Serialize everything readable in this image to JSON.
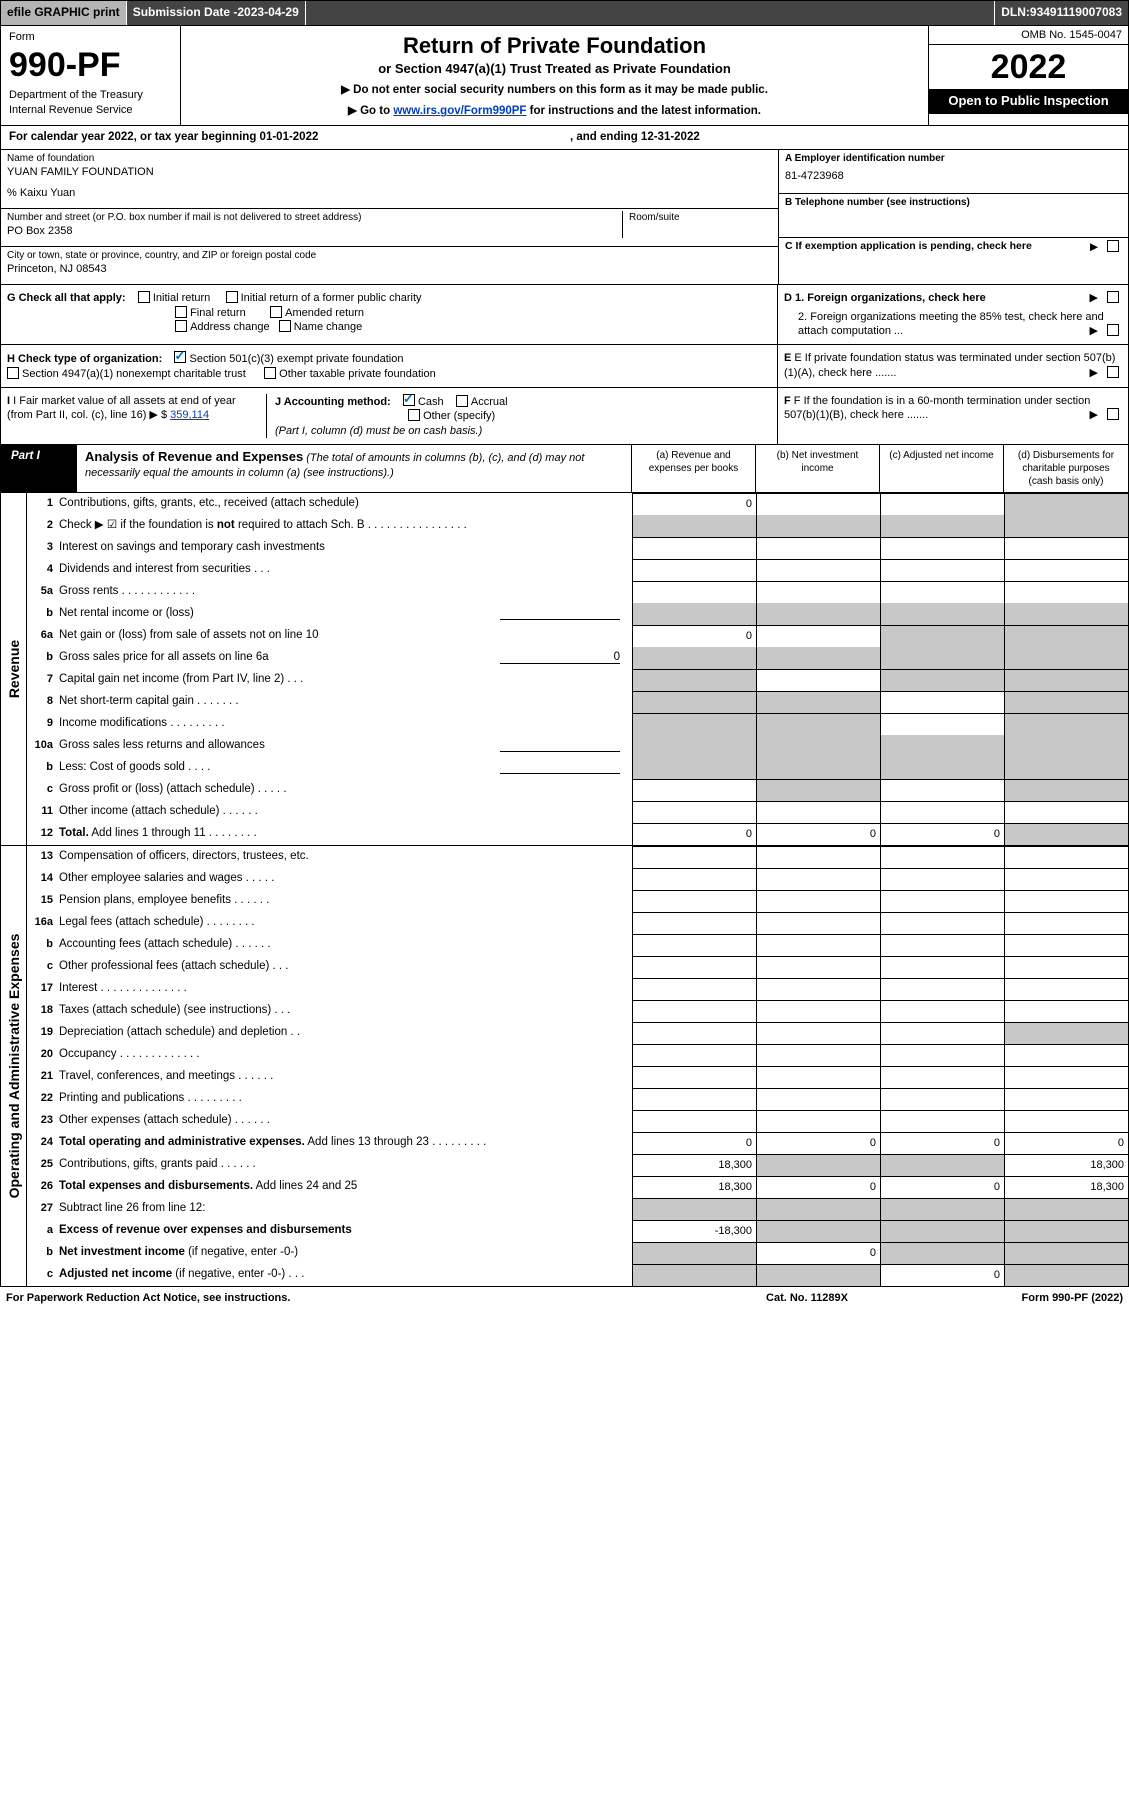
{
  "topbar": {
    "efile": "efile GRAPHIC print",
    "subdate_label": "Submission Date - ",
    "subdate": "2023-04-29",
    "dln_label": "DLN: ",
    "dln": "93491119007083"
  },
  "header": {
    "form_word": "Form",
    "form_no": "990-PF",
    "dept1": "Department of the Treasury",
    "dept2": "Internal Revenue Service",
    "title": "Return of Private Foundation",
    "subtitle": "or Section 4947(a)(1) Trust Treated as Private Foundation",
    "instr1": "▶ Do not enter social security numbers on this form as it may be made public.",
    "instr2_pre": "▶ Go to ",
    "instr2_link": "www.irs.gov/Form990PF",
    "instr2_post": " for instructions and the latest information.",
    "omb": "OMB No. 1545-0047",
    "year": "2022",
    "open": "Open to Public Inspection"
  },
  "cal": {
    "pre": "For calendar year 2022, or tax year beginning ",
    "begin": "01-01-2022",
    "mid": ", and ending ",
    "end": "12-31-2022"
  },
  "id": {
    "name_label": "Name of foundation",
    "name": "YUAN FAMILY FOUNDATION",
    "care": "% Kaixu Yuan",
    "addr_label": "Number and street (or P.O. box number if mail is not delivered to street address)",
    "addr": "PO Box 2358",
    "room_label": "Room/suite",
    "city_label": "City or town, state or province, country, and ZIP or foreign postal code",
    "city": "Princeton, NJ  08543",
    "ein_label": "A Employer identification number",
    "ein": "81-4723968",
    "tel_label": "B Telephone number (see instructions)",
    "c_label": "C If exemption application is pending, check here"
  },
  "checks": {
    "g_label": "G Check all that apply:",
    "g1": "Initial return",
    "g2": "Initial return of a former public charity",
    "g3": "Final return",
    "g4": "Amended return",
    "g5": "Address change",
    "g6": "Name change",
    "d1": "D 1. Foreign organizations, check here",
    "d2": "2. Foreign organizations meeting the 85% test, check here and attach computation ...",
    "h_label": "H Check type of organization:",
    "h1": "Section 501(c)(3) exempt private foundation",
    "h2": "Section 4947(a)(1) nonexempt charitable trust",
    "h3": "Other taxable private foundation",
    "e": "E If private foundation status was terminated under section 507(b)(1)(A), check here .......",
    "i_label": "I Fair market value of all assets at end of year (from Part II, col. (c), line 16)",
    "i_val": "359,114",
    "j_label": "J Accounting method:",
    "j1": "Cash",
    "j2": "Accrual",
    "j3": "Other (specify)",
    "j_note": "(Part I, column (d) must be on cash basis.)",
    "f": "F If the foundation is in a 60-month termination under section 507(b)(1)(B), check here ......."
  },
  "part1": {
    "tag": "Part I",
    "title_bold": "Analysis of Revenue and Expenses",
    "title_rest": " (The total of amounts in columns (b), (c), and (d) may not necessarily equal the amounts in column (a) (see instructions).)",
    "col_a": "(a)   Revenue and expenses per books",
    "col_b": "(b)   Net investment income",
    "col_c": "(c)   Adjusted net income",
    "col_d": "(d)   Disbursements for charitable purposes (cash basis only)",
    "rev_label": "Revenue",
    "op_label": "Operating and Administrative Expenses"
  },
  "rev_lines": [
    {
      "n": "1",
      "d": "Contributions, gifts, grants, etc., received (attach schedule)",
      "a": "0",
      "b": "",
      "c": "",
      "dshade": true
    },
    {
      "n": "2",
      "d": "Check ▶ ☑ if the foundation is <b>not</b> required to attach Sch. B   .   .   .   .   .   .   .   .   .   .   .   .   .   .   .   .",
      "raw": true,
      "nocols": true
    },
    {
      "n": "3",
      "d": "Interest on savings and temporary cash investments"
    },
    {
      "n": "4",
      "d": "Dividends and interest from securities   .   .   ."
    },
    {
      "n": "5a",
      "d": "Gross rents   .   .   .   .   .   .   .   .   .   .   .   ."
    },
    {
      "n": "b",
      "d": "Net rental income or (loss)",
      "inner": true,
      "nocols": true
    },
    {
      "n": "6a",
      "d": "Net gain or (loss) from sale of assets not on line 10",
      "a": "0",
      "dshade": true,
      "cshade": true
    },
    {
      "n": "b",
      "d": "Gross sales price for all assets on line 6a",
      "inner": true,
      "inner_val": "0",
      "nocols": true
    },
    {
      "n": "7",
      "d": "Capital gain net income (from Part IV, line 2)   .   .   .",
      "ashade": true,
      "cshade": true,
      "dshade": true
    },
    {
      "n": "8",
      "d": "Net short-term capital gain   .   .   .   .   .   .   .",
      "ashade": true,
      "bshade": true,
      "dshade": true
    },
    {
      "n": "9",
      "d": "Income modifications   .   .   .   .   .   .   .   .   .",
      "ashade": true,
      "bshade": true,
      "dshade": true
    },
    {
      "n": "10a",
      "d": "Gross sales less returns and allowances",
      "inner": true,
      "nocols": true
    },
    {
      "n": "b",
      "d": "Less: Cost of goods sold   .   .   .   .",
      "inner": true,
      "nocols": true
    },
    {
      "n": "c",
      "d": "Gross profit or (loss) (attach schedule)   .   .   .   .   .",
      "bshade": true,
      "dshade": true
    },
    {
      "n": "11",
      "d": "Other income (attach schedule)   .   .   .   .   .   ."
    },
    {
      "n": "12",
      "d": "<b>Total.</b> Add lines 1 through 11   .   .   .   .   .   .   .   .",
      "raw": true,
      "a": "0",
      "b": "0",
      "c": "0",
      "dshade": true
    }
  ],
  "op_lines": [
    {
      "n": "13",
      "d": "Compensation of officers, directors, trustees, etc."
    },
    {
      "n": "14",
      "d": "Other employee salaries and wages   .   .   .   .   ."
    },
    {
      "n": "15",
      "d": "Pension plans, employee benefits   .   .   .   .   .   ."
    },
    {
      "n": "16a",
      "d": "Legal fees (attach schedule)  .   .   .   .   .   .   .   ."
    },
    {
      "n": "b",
      "d": "Accounting fees (attach schedule)   .   .   .   .   .   ."
    },
    {
      "n": "c",
      "d": "Other professional fees (attach schedule)   .   .   ."
    },
    {
      "n": "17",
      "d": "Interest   .   .   .   .   .   .   .   .   .   .   .   .   .   ."
    },
    {
      "n": "18",
      "d": "Taxes (attach schedule) (see instructions)   .   .   ."
    },
    {
      "n": "19",
      "d": "Depreciation (attach schedule) and depletion   .   .",
      "dshade": true
    },
    {
      "n": "20",
      "d": "Occupancy   .   .   .   .   .   .   .   .   .   .   .   .   ."
    },
    {
      "n": "21",
      "d": "Travel, conferences, and meetings   .   .   .   .   .   ."
    },
    {
      "n": "22",
      "d": "Printing and publications   .   .   .   .   .   .   .   .   ."
    },
    {
      "n": "23",
      "d": "Other expenses (attach schedule)   .   .   .   .   .   ."
    },
    {
      "n": "24",
      "d": "<b>Total operating and administrative expenses.</b> Add lines 13 through 23   .   .   .   .   .   .   .   .   .",
      "raw": true,
      "a": "0",
      "b": "0",
      "c": "0",
      "dv": "0"
    },
    {
      "n": "25",
      "d": "Contributions, gifts, grants paid   .   .   .   .   .   .",
      "a": "18,300",
      "bshade": true,
      "cshade": true,
      "dv": "18,300"
    },
    {
      "n": "26",
      "d": "<b>Total expenses and disbursements.</b> Add lines 24 and 25",
      "raw": true,
      "a": "18,300",
      "b": "0",
      "c": "0",
      "dv": "18,300"
    },
    {
      "n": "27",
      "d": "Subtract line 26 from line 12:",
      "ashade": true,
      "bshade": true,
      "cshade": true,
      "dshade": true
    },
    {
      "n": "a",
      "d": "<b>Excess of revenue over expenses and disbursements</b>",
      "raw": true,
      "a": "-18,300",
      "bshade": true,
      "cshade": true,
      "dshade": true
    },
    {
      "n": "b",
      "d": "<b>Net investment income</b> (if negative, enter -0-)",
      "raw": true,
      "ashade": true,
      "b": "0",
      "cshade": true,
      "dshade": true
    },
    {
      "n": "c",
      "d": "<b>Adjusted net income</b> (if negative, enter -0-)   .   .   .",
      "raw": true,
      "ashade": true,
      "bshade": true,
      "c": "0",
      "dshade": true
    }
  ],
  "footer": {
    "left": "For Paperwork Reduction Act Notice, see instructions.",
    "cat": "Cat. No. 11289X",
    "form": "Form 990-PF (2022)"
  }
}
